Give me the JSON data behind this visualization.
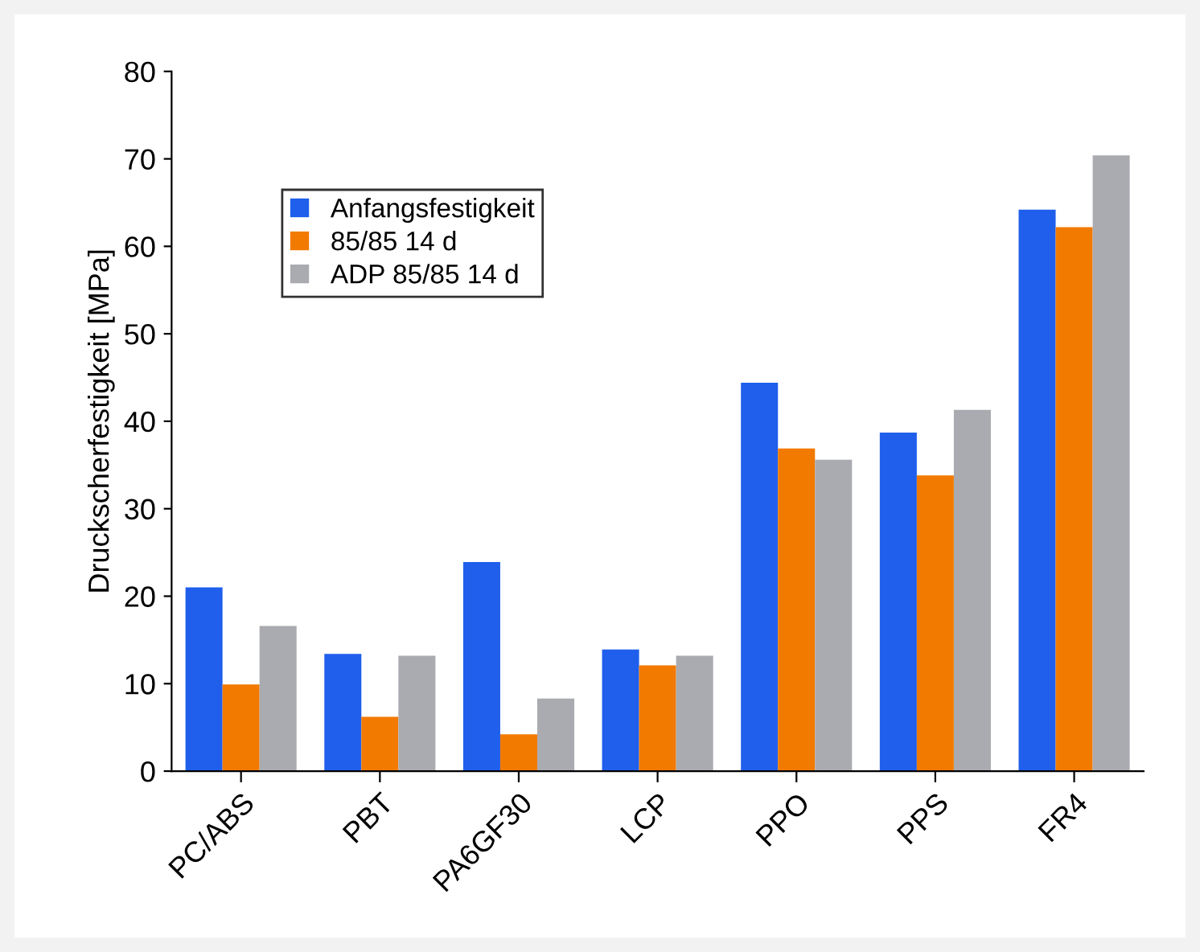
{
  "chart_data": {
    "type": "bar",
    "ylabel": "Druckscherfestigkeit [MPa]",
    "categories": [
      "PC/ABS",
      "PBT",
      "PA6GF30",
      "LCP",
      "PPO",
      "PPS",
      "FR4"
    ],
    "series": [
      {
        "name": "Anfangsfestigkeit",
        "color": "#1f5fec",
        "values": [
          21,
          13.4,
          23.9,
          13.9,
          44.4,
          38.7,
          64.2
        ]
      },
      {
        "name": "85/85 14 d",
        "color": "#f27a00",
        "values": [
          9.9,
          6.2,
          4.2,
          12.1,
          36.9,
          33.8,
          62.2
        ]
      },
      {
        "name": "ADP 85/85 14 d",
        "color": "#a9abb0",
        "values": [
          16.6,
          13.2,
          8.3,
          13.2,
          35.6,
          41.3,
          70.4
        ]
      }
    ],
    "ylim": [
      0,
      80
    ],
    "yticks": [
      0,
      10,
      20,
      30,
      40,
      50,
      60,
      70,
      80
    ],
    "grid": false,
    "legend": "top left"
  }
}
